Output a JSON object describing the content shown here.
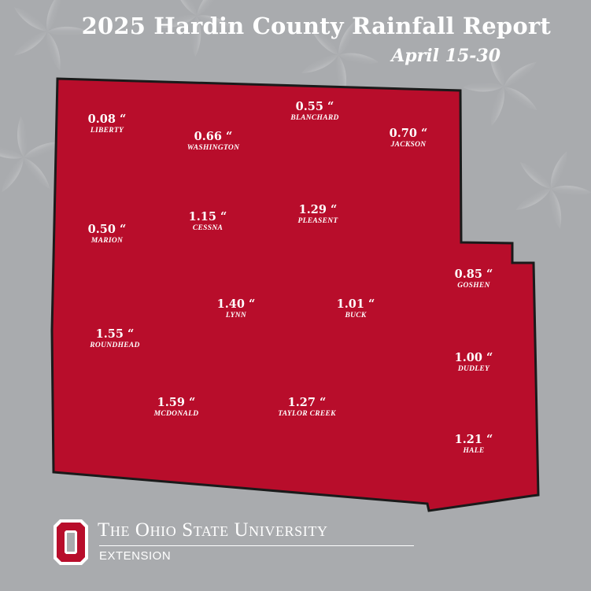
{
  "title": "2025 Hardin County Rainfall Report",
  "subtitle": "April 15-30",
  "colors": {
    "background": "#a9abae",
    "county_fill": "#b80d2b",
    "county_outline": "#1a1a1a",
    "text": "#ffffff"
  },
  "townships": [
    {
      "name": "LIBERTY",
      "value": "0.08 “"
    },
    {
      "name": "BLANCHARD",
      "value": "0.55 “"
    },
    {
      "name": "WASHINGTON",
      "value": "0.66 “"
    },
    {
      "name": "JACKSON",
      "value": "0.70 “"
    },
    {
      "name": "MARION",
      "value": "0.50 “"
    },
    {
      "name": "CESSNA",
      "value": "1.15 “"
    },
    {
      "name": "PLEASENT",
      "value": "1.29 “"
    },
    {
      "name": "GOSHEN",
      "value": "0.85 “"
    },
    {
      "name": "LYNN",
      "value": "1.40 “"
    },
    {
      "name": "BUCK",
      "value": "1.01 “"
    },
    {
      "name": "ROUNDHEAD",
      "value": "1.55 “"
    },
    {
      "name": "DUDLEY",
      "value": "1.00 “"
    },
    {
      "name": "MCDONALD",
      "value": "1.59 “"
    },
    {
      "name": "TAYLOR CREEK",
      "value": "1.27 “"
    },
    {
      "name": "HALE",
      "value": "1.21 “"
    }
  ],
  "footer": {
    "university": "The Ohio State University",
    "unit": "EXTENSION",
    "logo_letter": "O"
  }
}
